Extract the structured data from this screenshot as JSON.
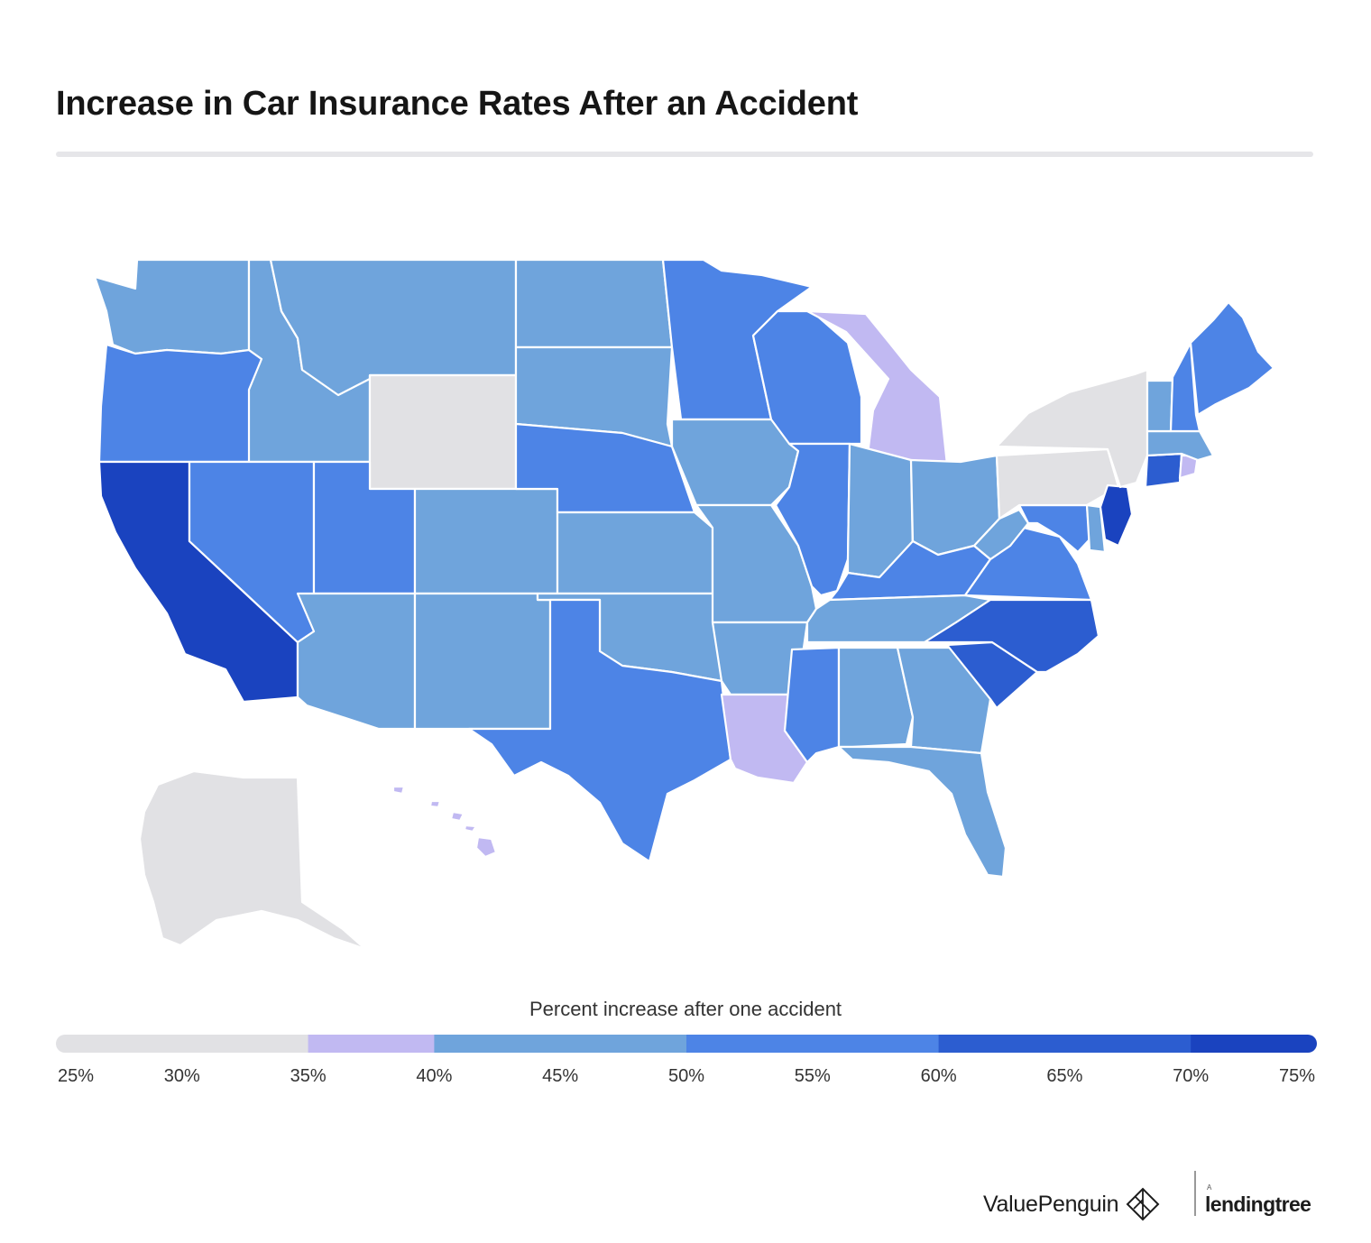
{
  "title": "Increase in Car Insurance Rates After an Accident",
  "legend": {
    "title": "Percent increase after one accident",
    "ticks": [
      "25%",
      "30%",
      "35%",
      "40%",
      "45%",
      "50%",
      "55%",
      "60%",
      "65%",
      "70%",
      "75%"
    ],
    "bins": [
      {
        "min": 25,
        "max": 35,
        "color": "#e1e1e4"
      },
      {
        "min": 35,
        "max": 40,
        "color": "#c1b9f2"
      },
      {
        "min": 40,
        "max": 50,
        "color": "#6fa4dc"
      },
      {
        "min": 50,
        "max": 60,
        "color": "#4d84e6"
      },
      {
        "min": 60,
        "max": 70,
        "color": "#2c5dd0"
      },
      {
        "min": 70,
        "max": 75,
        "color": "#1a43bf"
      }
    ]
  },
  "chart_data": {
    "type": "choropleth",
    "value_label": "Percent increase after one accident",
    "regions": [
      {
        "state": "Washington",
        "value": 45
      },
      {
        "state": "Oregon",
        "value": 55
      },
      {
        "state": "California",
        "value": 72
      },
      {
        "state": "Idaho",
        "value": 45
      },
      {
        "state": "Nevada",
        "value": 55
      },
      {
        "state": "Montana",
        "value": 45
      },
      {
        "state": "Wyoming",
        "value": 27
      },
      {
        "state": "Utah",
        "value": 55
      },
      {
        "state": "Colorado",
        "value": 45
      },
      {
        "state": "Arizona",
        "value": 45
      },
      {
        "state": "New Mexico",
        "value": 45
      },
      {
        "state": "North Dakota",
        "value": 45
      },
      {
        "state": "South Dakota",
        "value": 45
      },
      {
        "state": "Nebraska",
        "value": 55
      },
      {
        "state": "Kansas",
        "value": 45
      },
      {
        "state": "Oklahoma",
        "value": 45
      },
      {
        "state": "Texas",
        "value": 55
      },
      {
        "state": "Minnesota",
        "value": 55
      },
      {
        "state": "Iowa",
        "value": 45
      },
      {
        "state": "Missouri",
        "value": 45
      },
      {
        "state": "Arkansas",
        "value": 45
      },
      {
        "state": "Louisiana",
        "value": 38
      },
      {
        "state": "Wisconsin",
        "value": 55
      },
      {
        "state": "Illinois",
        "value": 55
      },
      {
        "state": "Michigan",
        "value": 38
      },
      {
        "state": "Indiana",
        "value": 45
      },
      {
        "state": "Ohio",
        "value": 45
      },
      {
        "state": "Kentucky",
        "value": 55
      },
      {
        "state": "Tennessee",
        "value": 45
      },
      {
        "state": "Mississippi",
        "value": 55
      },
      {
        "state": "Alabama",
        "value": 45
      },
      {
        "state": "Georgia",
        "value": 45
      },
      {
        "state": "Florida",
        "value": 45
      },
      {
        "state": "South Carolina",
        "value": 65
      },
      {
        "state": "North Carolina",
        "value": 65
      },
      {
        "state": "Virginia",
        "value": 55
      },
      {
        "state": "West Virginia",
        "value": 45
      },
      {
        "state": "Maryland",
        "value": 55
      },
      {
        "state": "Delaware",
        "value": 45
      },
      {
        "state": "Pennsylvania",
        "value": 32
      },
      {
        "state": "New Jersey",
        "value": 73
      },
      {
        "state": "New York",
        "value": 32
      },
      {
        "state": "Connecticut",
        "value": 65
      },
      {
        "state": "Rhode Island",
        "value": 38
      },
      {
        "state": "Massachusetts",
        "value": 45
      },
      {
        "state": "Vermont",
        "value": 45
      },
      {
        "state": "New Hampshire",
        "value": 55
      },
      {
        "state": "Maine",
        "value": 55
      },
      {
        "state": "Alaska",
        "value": 27
      },
      {
        "state": "Hawaii",
        "value": 38
      }
    ]
  },
  "brand": {
    "valuepenguin": "ValuePenguin",
    "lendingtree_prefix": "A",
    "lendingtree": "lendingtree"
  }
}
